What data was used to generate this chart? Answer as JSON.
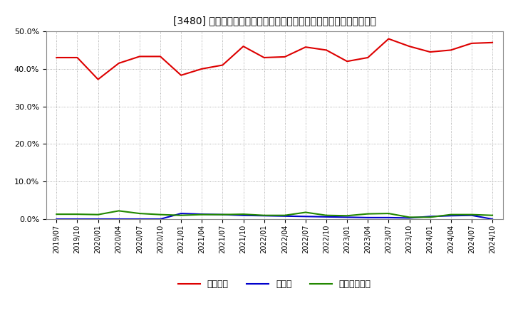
{
  "title": "[3480] 自己資本、のれん、繰延税金資産の総資産に対する比率の推移",
  "title_prefix": "[3480] ",
  "x_labels": [
    "2019/07",
    "2019/10",
    "2020/01",
    "2020/04",
    "2020/07",
    "2020/10",
    "2021/01",
    "2021/04",
    "2021/07",
    "2021/10",
    "2022/01",
    "2022/04",
    "2022/07",
    "2022/10",
    "2023/01",
    "2023/04",
    "2023/07",
    "2023/10",
    "2024/01",
    "2024/04",
    "2024/07",
    "2024/10"
  ],
  "equity": [
    0.43,
    0.43,
    0.372,
    0.415,
    0.433,
    0.433,
    0.383,
    0.4,
    0.41,
    0.46,
    0.43,
    0.432,
    0.458,
    0.45,
    0.42,
    0.43,
    0.48,
    0.46,
    0.445,
    0.45,
    0.468,
    0.47
  ],
  "noren": [
    0.0,
    0.0,
    0.0,
    0.0,
    0.0,
    0.0,
    0.015,
    0.013,
    0.012,
    0.01,
    0.009,
    0.008,
    0.007,
    0.006,
    0.005,
    0.004,
    0.004,
    0.003,
    0.007,
    0.009,
    0.01,
    0.0
  ],
  "deferred_tax": [
    0.013,
    0.013,
    0.012,
    0.022,
    0.015,
    0.012,
    0.01,
    0.012,
    0.012,
    0.013,
    0.01,
    0.01,
    0.018,
    0.01,
    0.009,
    0.014,
    0.015,
    0.005,
    0.005,
    0.012,
    0.012,
    0.01
  ],
  "equity_color": "#dd0000",
  "noren_color": "#0000cc",
  "deferred_tax_color": "#228800",
  "background_color": "#ffffff",
  "grid_color": "#999999",
  "ylim": [
    0.0,
    0.5
  ],
  "yticks": [
    0.0,
    0.1,
    0.2,
    0.3,
    0.4,
    0.5
  ],
  "legend_labels": [
    "自己資本",
    "のれん",
    "繰延税金資産"
  ]
}
